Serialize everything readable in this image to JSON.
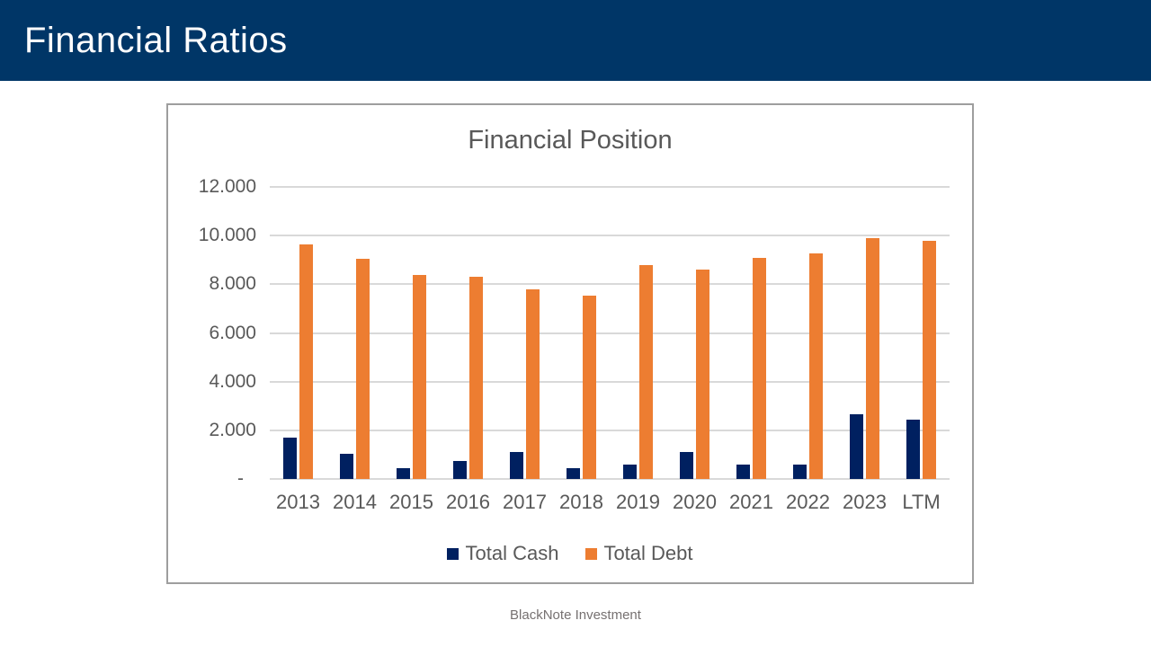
{
  "slide": {
    "header": {
      "title": "Financial Ratios",
      "bg_color": "#003667",
      "text_color": "#ffffff"
    },
    "footer": {
      "text": "BlackNote Investment",
      "color": "#767171"
    }
  },
  "chart_data": {
    "type": "bar",
    "title": "Financial Position",
    "categories": [
      "2013",
      "2014",
      "2015",
      "2016",
      "2017",
      "2018",
      "2019",
      "2020",
      "2021",
      "2022",
      "2023",
      "LTM"
    ],
    "series": [
      {
        "name": "Total Cash",
        "color": "#002060",
        "values": [
          1700,
          1050,
          450,
          750,
          1100,
          450,
          600,
          1100,
          600,
          600,
          2650,
          2450
        ]
      },
      {
        "name": "Total Debt",
        "color": "#ED7D31",
        "values": [
          9650,
          9050,
          8400,
          8300,
          7800,
          7550,
          8800,
          8600,
          9100,
          9250,
          9900,
          9800
        ]
      }
    ],
    "xlabel": "",
    "ylabel": "",
    "ylim": [
      0,
      12000
    ],
    "y_tick_interval": 2000,
    "y_tick_labels": [
      "12.000",
      "10.000",
      "8.000",
      "6.000",
      "4.000",
      "2.000",
      "-"
    ],
    "grid": true,
    "gridline_color": "#d9d9d9",
    "axis_text_color": "#595959",
    "legend_position": "bottom"
  }
}
